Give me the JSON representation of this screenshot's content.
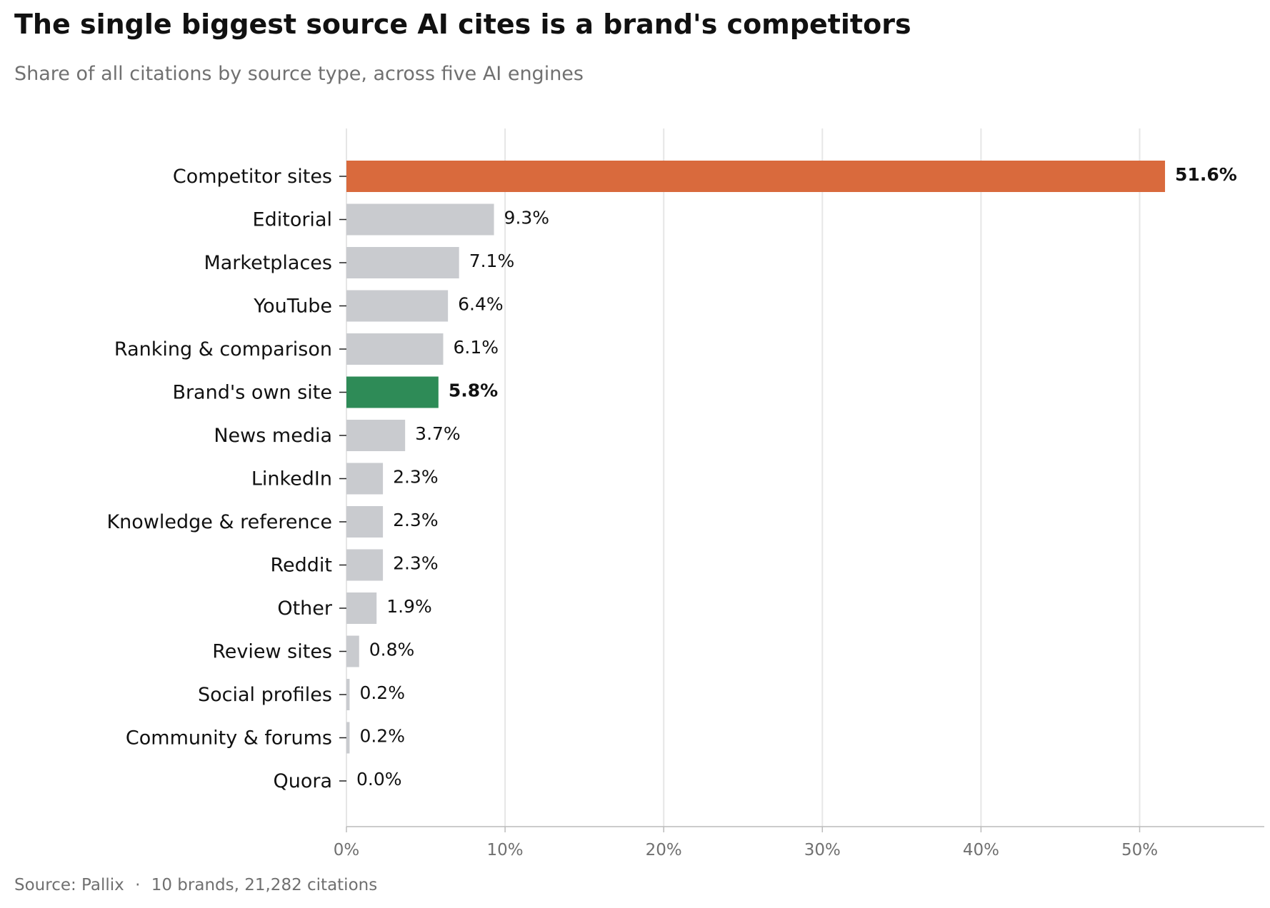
{
  "chart_data": {
    "type": "bar",
    "orientation": "horizontal",
    "title": "The single biggest source AI cites is a brand's competitors",
    "subtitle": "Share of all citations by source type, across five AI engines",
    "source_label": "Source: Pallix",
    "source_separator": "·",
    "source_detail": "10 brands, 21,282 citations",
    "categories": [
      "Competitor sites",
      "Editorial",
      "Marketplaces",
      "YouTube",
      "Ranking & comparison",
      "Brand's own site",
      "News media",
      "LinkedIn",
      "Knowledge & reference",
      "Reddit",
      "Other",
      "Review sites",
      "Social profiles",
      "Community & forums",
      "Quora"
    ],
    "values": [
      51.6,
      9.3,
      7.1,
      6.4,
      6.1,
      5.8,
      3.7,
      2.3,
      2.3,
      2.3,
      1.9,
      0.8,
      0.2,
      0.2,
      0.0
    ],
    "value_labels": [
      "51.6%",
      "9.3%",
      "7.1%",
      "6.4%",
      "6.1%",
      "5.8%",
      "3.7%",
      "2.3%",
      "2.3%",
      "2.3%",
      "1.9%",
      "0.8%",
      "0.2%",
      "0.2%",
      "0.0%"
    ],
    "highlight": {
      "Competitor sites": "#d96a3d",
      "Brand's own site": "#2e8b57"
    },
    "bold_labels": [
      "Competitor sites",
      "Brand's own site"
    ],
    "default_color": "#c9cbcf",
    "xlim": [
      0,
      58
    ],
    "x_ticks": [
      0,
      10,
      20,
      30,
      40,
      50
    ],
    "x_tick_labels": [
      "0%",
      "10%",
      "20%",
      "30%",
      "40%",
      "50%"
    ],
    "grid": "vertical",
    "grid_color": "#e6e6e6",
    "axis_color": "#bbbbbb",
    "legend": "none"
  }
}
